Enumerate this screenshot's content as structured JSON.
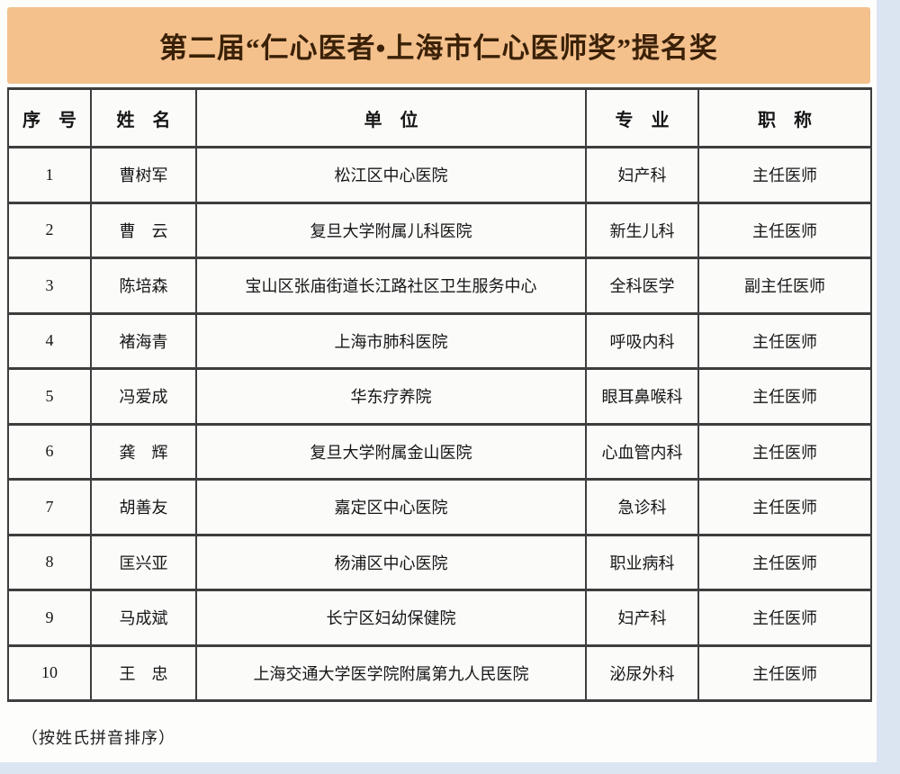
{
  "page": {
    "title": "第二届“仁心医者•上海市仁心医师奖”提名奖",
    "footnote": "（按姓氏拼音排序）"
  },
  "colors": {
    "banner_background": "#f4c08c",
    "banner_text": "#3a2107",
    "table_border": "#3e3e3e",
    "page_margin": "#dbe5f2",
    "sheet_background": "#fdfdfc"
  },
  "table": {
    "headers": [
      "序　号",
      "姓　名",
      "单　位",
      "专　业",
      "职　称"
    ],
    "rows": [
      [
        "1",
        "曹树军",
        "松江区中心医院",
        "妇产科",
        "主任医师"
      ],
      [
        "2",
        "曹　云",
        "复旦大学附属儿科医院",
        "新生儿科",
        "主任医师"
      ],
      [
        "3",
        "陈培森",
        "宝山区张庙街道长江路社区卫生服务中心",
        "全科医学",
        "副主任医师"
      ],
      [
        "4",
        "褚海青",
        "上海市肺科医院",
        "呼吸内科",
        "主任医师"
      ],
      [
        "5",
        "冯爱成",
        "华东疗养院",
        "眼耳鼻喉科",
        "主任医师"
      ],
      [
        "6",
        "龚　辉",
        "复旦大学附属金山医院",
        "心血管内科",
        "主任医师"
      ],
      [
        "7",
        "胡善友",
        "嘉定区中心医院",
        "急诊科",
        "主任医师"
      ],
      [
        "8",
        "匡兴亚",
        "杨浦区中心医院",
        "职业病科",
        "主任医师"
      ],
      [
        "9",
        "马成斌",
        "长宁区妇幼保健院",
        "妇产科",
        "主任医师"
      ],
      [
        "10",
        "王　忠",
        "上海交通大学医学院附属第九人民医院",
        "泌尿外科",
        "主任医师"
      ]
    ]
  }
}
